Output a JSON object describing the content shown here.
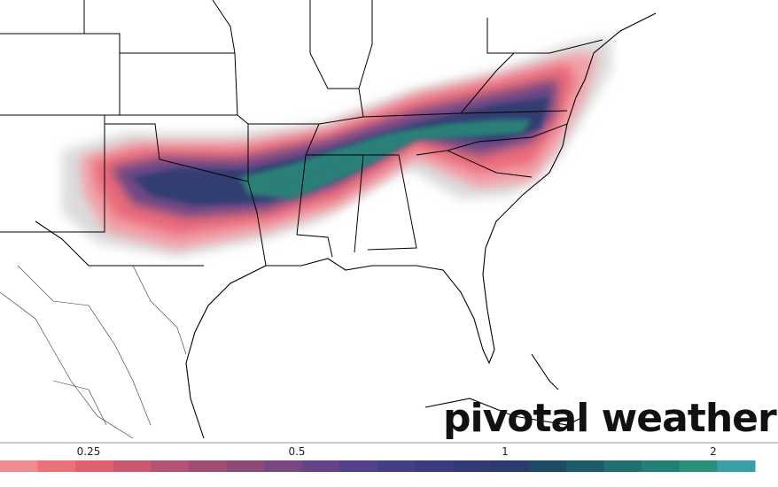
{
  "brand": "pivotal weather",
  "colorbar": {
    "labels": [
      "0.25",
      "0.5",
      "1",
      "2"
    ],
    "colors": [
      "#f08a8e",
      "#ec7078",
      "#e0606e",
      "#cc5870",
      "#b65272",
      "#a04e74",
      "#8c4a78",
      "#784680",
      "#644487",
      "#52408a",
      "#443e86",
      "#3a3c80",
      "#323a78",
      "#2c3a6e",
      "#1f4a66",
      "#1f5c6a",
      "#20706f",
      "#238075",
      "#2a907c",
      "#3aa0a8"
    ]
  }
}
